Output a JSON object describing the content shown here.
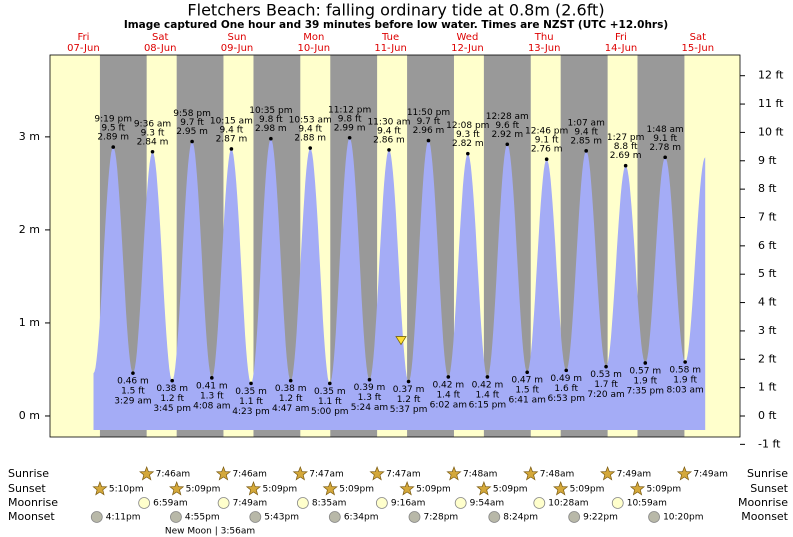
{
  "chart_data": {
    "type": "tide",
    "title": "Fletchers Beach: falling  ordinary tide at 0.8m (2.6ft)",
    "subtitle": "Image captured One hour and 39 minutes before low water. Times are NZST (UTC +12.0hrs)",
    "current_level_m": 0.8,
    "days": [
      {
        "dow": "Fri",
        "date": "07-Jun"
      },
      {
        "dow": "Sat",
        "date": "08-Jun"
      },
      {
        "dow": "Sun",
        "date": "09-Jun"
      },
      {
        "dow": "Mon",
        "date": "10-Jun"
      },
      {
        "dow": "Tue",
        "date": "11-Jun"
      },
      {
        "dow": "Wed",
        "date": "12-Jun"
      },
      {
        "dow": "Thu",
        "date": "13-Jun"
      },
      {
        "dow": "Fri",
        "date": "14-Jun"
      },
      {
        "dow": "Sat",
        "date": "15-Jun"
      }
    ],
    "extremes": [
      {
        "time": "9:19 pm",
        "height_m": 2.89,
        "label_m": "2.89 m",
        "label_ft": "9.5 ft"
      },
      {
        "time": "3:29 am",
        "height_m": 0.46,
        "label_m": "0.46 m",
        "label_ft": "1.5 ft"
      },
      {
        "time": "9:36 am",
        "height_m": 2.84,
        "label_m": "2.84 m",
        "label_ft": "9.3 ft"
      },
      {
        "time": "3:45 pm",
        "height_m": 0.38,
        "label_m": "0.38 m",
        "label_ft": "1.2 ft"
      },
      {
        "time": "9:58 pm",
        "height_m": 2.95,
        "label_m": "2.95 m",
        "label_ft": "9.7 ft"
      },
      {
        "time": "4:08 am",
        "height_m": 0.41,
        "label_m": "0.41 m",
        "label_ft": "1.3 ft"
      },
      {
        "time": "10:15 am",
        "height_m": 2.87,
        "label_m": "2.87 m",
        "label_ft": "9.4 ft"
      },
      {
        "time": "4:23 pm",
        "height_m": 0.35,
        "label_m": "0.35 m",
        "label_ft": "1.1 ft"
      },
      {
        "time": "10:35 pm",
        "height_m": 2.98,
        "label_m": "2.98 m",
        "label_ft": "9.8 ft"
      },
      {
        "time": "4:47 am",
        "height_m": 0.38,
        "label_m": "0.38 m",
        "label_ft": "1.2 ft"
      },
      {
        "time": "10:53 am",
        "height_m": 2.88,
        "label_m": "2.88 m",
        "label_ft": "9.4 ft"
      },
      {
        "time": "5:00 pm",
        "height_m": 0.35,
        "label_m": "0.35 m",
        "label_ft": "1.1 ft"
      },
      {
        "time": "11:12 pm",
        "height_m": 2.99,
        "label_m": "2.99 m",
        "label_ft": "9.8 ft"
      },
      {
        "time": "5:24 am",
        "height_m": 0.39,
        "label_m": "0.39 m",
        "label_ft": "1.3 ft"
      },
      {
        "time": "11:30 am",
        "height_m": 2.86,
        "label_m": "2.86 m",
        "label_ft": "9.4 ft"
      },
      {
        "time": "5:37 pm",
        "height_m": 0.37,
        "label_m": "0.37 m",
        "label_ft": "1.2 ft"
      },
      {
        "time": "11:50 pm",
        "height_m": 2.96,
        "label_m": "2.96 m",
        "label_ft": "9.7 ft"
      },
      {
        "time": "6:02 am",
        "height_m": 0.42,
        "label_m": "0.42 m",
        "label_ft": "1.4 ft"
      },
      {
        "time": "12:08 pm",
        "height_m": 2.82,
        "label_m": "2.82 m",
        "label_ft": "9.3 ft"
      },
      {
        "time": "6:15 pm",
        "height_m": 0.42,
        "label_m": "0.42 m",
        "label_ft": "1.4 ft"
      },
      {
        "time": "12:28 am",
        "height_m": 2.92,
        "label_m": "2.92 m",
        "label_ft": "9.6 ft"
      },
      {
        "time": "6:41 am",
        "height_m": 0.47,
        "label_m": "0.47 m",
        "label_ft": "1.5 ft"
      },
      {
        "time": "12:46 pm",
        "height_m": 2.76,
        "label_m": "2.76 m",
        "label_ft": "9.1 ft"
      },
      {
        "time": "6:53 pm",
        "height_m": 0.49,
        "label_m": "0.49 m",
        "label_ft": "1.6 ft"
      },
      {
        "time": "1:07 am",
        "height_m": 2.85,
        "label_m": "2.85 m",
        "label_ft": "9.4 ft"
      },
      {
        "time": "7:20 am",
        "height_m": 0.53,
        "label_m": "0.53 m",
        "label_ft": "1.7 ft"
      },
      {
        "time": "1:27 pm",
        "height_m": 2.69,
        "label_m": "2.69 m",
        "label_ft": "8.8 ft"
      },
      {
        "time": "7:35 pm",
        "height_m": 0.57,
        "label_m": "0.57 m",
        "label_ft": "1.9 ft"
      },
      {
        "time": "1:48 am",
        "height_m": 2.78,
        "label_m": "2.78 m",
        "label_ft": "9.1 ft"
      },
      {
        "time": "8:03 am",
        "height_m": 0.58,
        "label_m": "0.58 m",
        "label_ft": "1.9 ft"
      }
    ],
    "ylim": [
      -0.226,
      3.88
    ],
    "yticks": [
      {
        "value": 0,
        "label": "0 m"
      },
      {
        "value": 1,
        "label": "1 m"
      },
      {
        "value": 2,
        "label": "2 m"
      },
      {
        "value": 3,
        "label": "3 m"
      }
    ],
    "y2lim": [
      -0.741,
      12.73
    ],
    "y2ticks": [
      {
        "value": -1,
        "label": "-1 ft"
      },
      {
        "value": 0,
        "label": "0 ft"
      },
      {
        "value": 1,
        "label": "1 ft"
      },
      {
        "value": 2,
        "label": "2 ft"
      },
      {
        "value": 3,
        "label": "3 ft"
      },
      {
        "value": 4,
        "label": "4 ft"
      },
      {
        "value": 5,
        "label": "5 ft"
      },
      {
        "value": 6,
        "label": "6 ft"
      },
      {
        "value": 7,
        "label": "7 ft"
      },
      {
        "value": 8,
        "label": "8 ft"
      },
      {
        "value": 9,
        "label": "9 ft"
      },
      {
        "value": 10,
        "label": "10 ft"
      },
      {
        "value": 11,
        "label": "11 ft"
      },
      {
        "value": 12,
        "label": "12 ft"
      }
    ],
    "colors": {
      "day": "#ffffcc",
      "night": "#999999",
      "water": "#a4acf6",
      "day_label": "#dd0000"
    },
    "sun_moon": {
      "rows": [
        {
          "name": "Sunrise",
          "times": [
            null,
            "7:46am",
            "7:46am",
            "7:47am",
            "7:47am",
            "7:48am",
            "7:48am",
            "7:49am",
            "7:49am"
          ]
        },
        {
          "name": "Sunset",
          "times": [
            "5:10pm",
            "5:09pm",
            "5:09pm",
            "5:09pm",
            "5:09pm",
            "5:09pm",
            "5:09pm",
            "5:09pm",
            null
          ]
        },
        {
          "name": "Moonrise",
          "times": [
            null,
            "6:59am",
            "7:49am",
            "8:35am",
            "9:16am",
            "9:54am",
            "10:28am",
            "10:59am",
            null
          ]
        },
        {
          "name": "Moonset",
          "times": [
            "4:11pm",
            "4:55pm",
            "5:43pm",
            "6:34pm",
            "7:28pm",
            "8:24pm",
            "9:22pm",
            "10:20pm",
            null
          ]
        }
      ],
      "moon_phase": "New Moon | 3:56am"
    }
  }
}
